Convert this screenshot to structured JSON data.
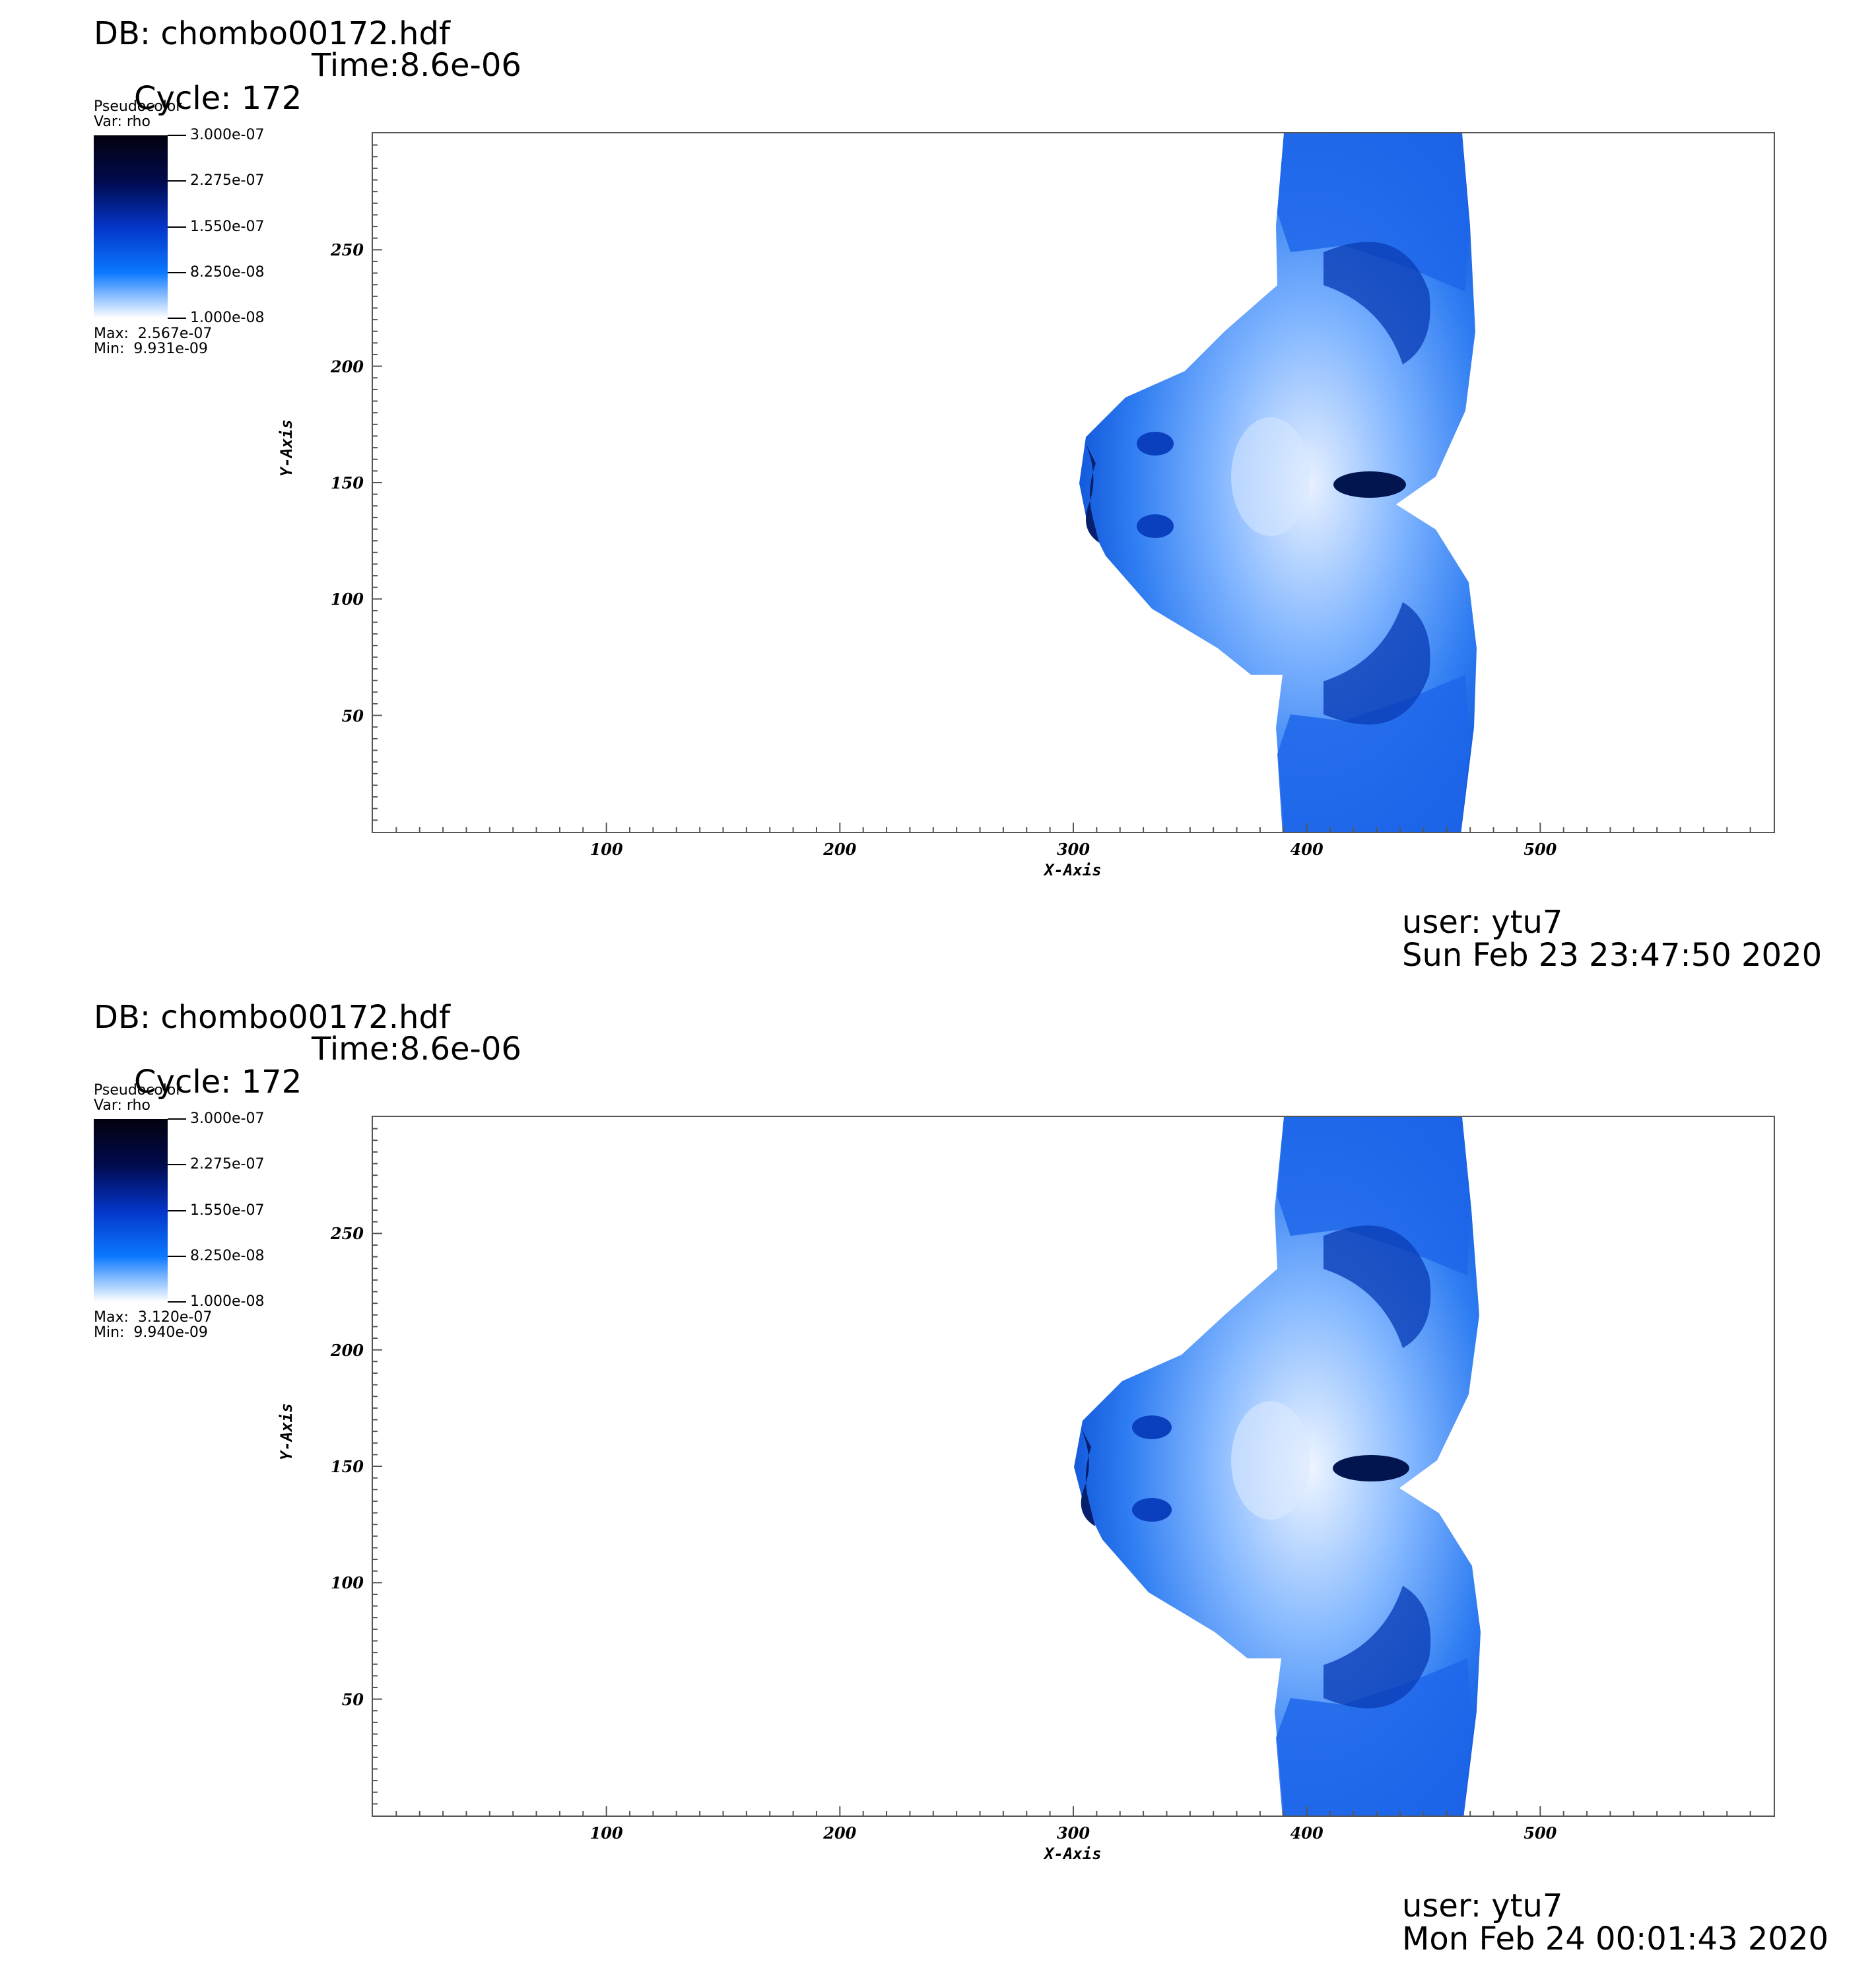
{
  "plots": [
    {
      "db_label": "DB: chombo00172.hdf",
      "cycle_label": "Cycle: 172",
      "time_label": "Time:8.6e-06",
      "legend": {
        "title": "Pseudocolor",
        "var": "Var: rho",
        "ticks": [
          "3.000e-07",
          "2.275e-07",
          "1.550e-07",
          "8.250e-08",
          "1.000e-08"
        ],
        "max_label": "Max:  2.567e-07",
        "min_label": "Min:  9.931e-09"
      },
      "user_label": "user: ytu7",
      "date_label": "Sun Feb 23 23:47:50 2020"
    },
    {
      "db_label": "DB: chombo00172.hdf",
      "cycle_label": "Cycle: 172",
      "time_label": "Time:8.6e-06",
      "legend": {
        "title": "Pseudocolor",
        "var": "Var: rho",
        "ticks": [
          "3.000e-07",
          "2.275e-07",
          "1.550e-07",
          "8.250e-08",
          "1.000e-08"
        ],
        "max_label": "Max:  3.120e-07",
        "min_label": "Min:  9.940e-09"
      },
      "user_label": "user: ytu7",
      "date_label": "Mon Feb 24 00:01:43 2020"
    }
  ],
  "chart_data": [
    {
      "type": "heatmap",
      "xlabel": "X-Axis",
      "ylabel": "Y-Axis",
      "xlim": [
        0,
        600
      ],
      "ylim": [
        0,
        300
      ],
      "x_ticks": [
        100,
        200,
        300,
        400,
        500
      ],
      "y_ticks": [
        50,
        100,
        150,
        200,
        250
      ],
      "colorbar_range": [
        1e-08,
        3e-07
      ],
      "colormap": [
        "#ffffff",
        "#0a78ff",
        "#0435c7",
        "#010a4d",
        "#02020e"
      ]
    },
    {
      "type": "heatmap",
      "xlabel": "X-Axis",
      "ylabel": "Y-Axis",
      "xlim": [
        0,
        600
      ],
      "ylim": [
        0,
        300
      ],
      "x_ticks": [
        100,
        200,
        300,
        400,
        500
      ],
      "y_ticks": [
        50,
        100,
        150,
        200,
        250
      ],
      "colorbar_range": [
        1e-08,
        3e-07
      ],
      "colormap": [
        "#ffffff",
        "#0a78ff",
        "#0435c7",
        "#010a4d",
        "#02020e"
      ]
    }
  ]
}
